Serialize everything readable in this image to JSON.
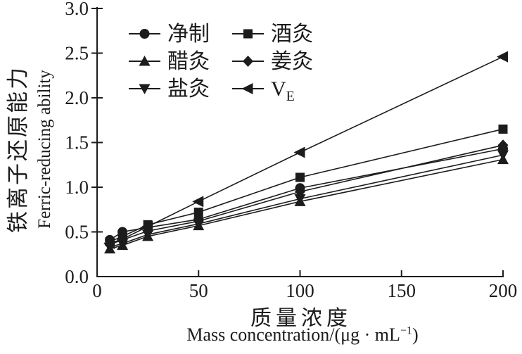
{
  "figure": {
    "background": "#ffffff",
    "ink": "#1c1c1c"
  },
  "y_axis": {
    "label_zh": "铁离子还原能力",
    "label_en": "Ferric-reducing ability",
    "tick_labels": [
      "0.0",
      "0.5",
      "1.0",
      "1.5",
      "2.0",
      "2.5",
      "3.0"
    ],
    "tick_values": [
      0,
      0.5,
      1.0,
      1.5,
      2.0,
      2.5,
      3.0
    ]
  },
  "x_axis": {
    "label_zh": "质量浓度",
    "label_en_pre": "Mass concentration/(μg · mL",
    "label_en_sup": "−1",
    "label_en_post": ")",
    "tick_labels": [
      "0",
      "50",
      "100",
      "150",
      "200"
    ],
    "tick_values": [
      0,
      50,
      100,
      150,
      200
    ]
  },
  "chart_data": {
    "type": "line",
    "title": "",
    "xlabel": "质量浓度 Mass concentration/(μg·mL⁻¹)",
    "ylabel": "铁离子还原能力 Ferric-reducing ability",
    "xlim": [
      0,
      200
    ],
    "ylim": [
      0,
      3.0
    ],
    "grid": false,
    "legend_position": "upper-left-inside",
    "x": [
      6.25,
      12.5,
      25,
      50,
      100,
      200
    ],
    "series": [
      {
        "name": "净制",
        "marker": "circle",
        "values": [
          0.41,
          0.5,
          0.55,
          0.64,
          0.99,
          1.43
        ]
      },
      {
        "name": "酒灸",
        "marker": "square",
        "values": [
          0.39,
          0.45,
          0.58,
          0.72,
          1.11,
          1.65
        ]
      },
      {
        "name": "醋灸",
        "marker": "triangle-up",
        "values": [
          0.31,
          0.35,
          0.45,
          0.57,
          0.84,
          1.31
        ]
      },
      {
        "name": "姜灸",
        "marker": "diamond",
        "values": [
          0.36,
          0.41,
          0.51,
          0.62,
          0.95,
          1.47
        ]
      },
      {
        "name": "盐灸",
        "marker": "triangle-down",
        "values": [
          0.33,
          0.37,
          0.47,
          0.59,
          0.87,
          1.36
        ]
      },
      {
        "name": "V_E",
        "marker": "triangle-left",
        "values": [
          0.37,
          0.42,
          0.56,
          0.84,
          1.39,
          2.46
        ]
      }
    ]
  }
}
